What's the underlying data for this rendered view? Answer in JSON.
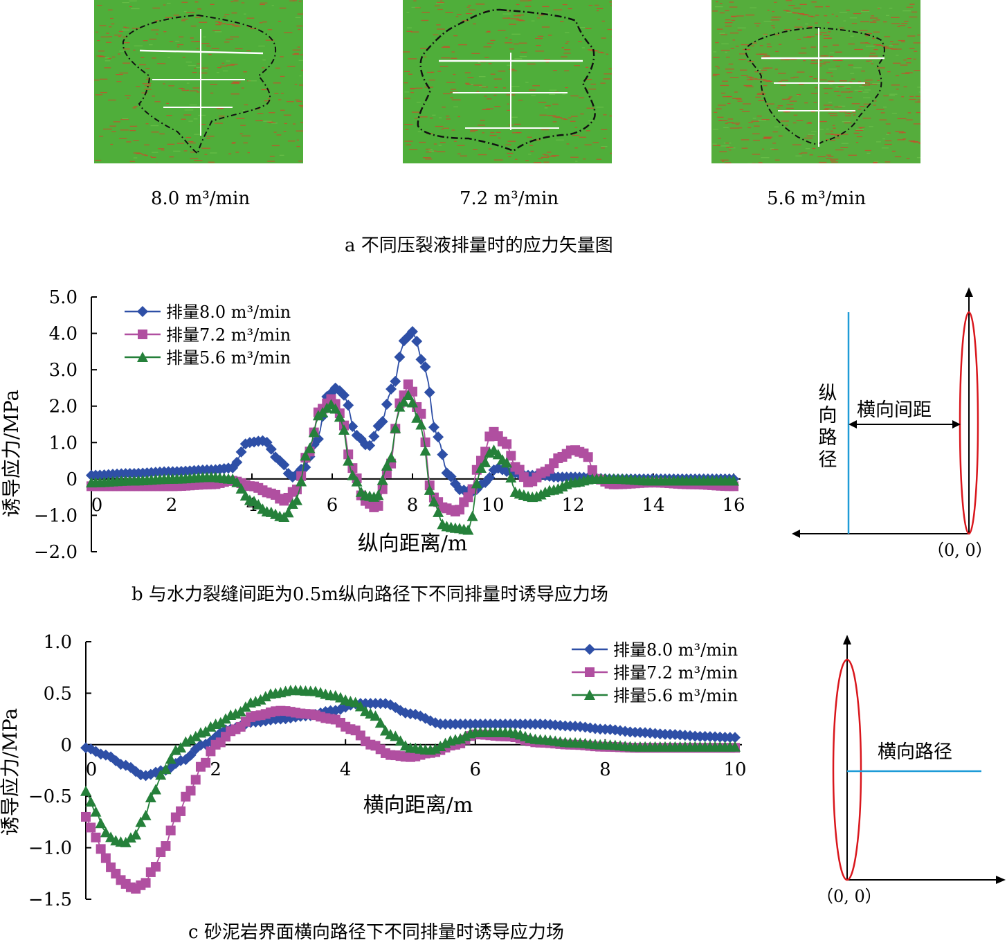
{
  "panel_a": {
    "images": [
      {
        "rate_label": "8.0 m³/min"
      },
      {
        "rate_label": "7.2 m³/min"
      },
      {
        "rate_label": "5.6 m³/min"
      }
    ],
    "caption": "a 不同压裂液排量时的应力矢量图"
  },
  "panel_b": {
    "caption": "b 与水力裂缝间距为0.5m纵向路径下不同排量时诱导应力场",
    "schematic": {
      "path_label": "纵向路径",
      "spacing_label": "横向间距",
      "origin_label": "（0, 0）"
    }
  },
  "panel_c": {
    "caption": "c 砂泥岩界面横向路径下不同排量时诱导应力场",
    "schematic": {
      "path_label": "横向路径",
      "origin_label": "（0, 0）"
    }
  },
  "colors": {
    "series_8_0": "#2e4fa6",
    "series_7_2": "#b04fa0",
    "series_5_6": "#25803a",
    "fracture_ellipse": "#d9161c",
    "path_line": "#1e9bd7",
    "image_green": "#4fae3a",
    "image_red": "#d2452a"
  },
  "chart_data": [
    {
      "type": "line",
      "xlabel": "纵向距离/m",
      "ylabel": "诱导应力/MPa",
      "xlim": [
        0,
        16
      ],
      "ylim": [
        -2.0,
        5.0
      ],
      "x_ticks": [
        "0",
        "2",
        "4",
        "6",
        "8",
        "10",
        "12",
        "14",
        "16"
      ],
      "y_ticks": [
        "5.0",
        "4.0",
        "3.0",
        "2.0",
        "1.0",
        "0",
        "−1.0",
        "−2.0"
      ],
      "legend_position": "top-left",
      "series": [
        {
          "name": "排量8.0 m³/min",
          "marker": "diamond",
          "x": [
            0,
            1,
            2,
            3,
            3.5,
            3.9,
            4.3,
            4.7,
            5.0,
            5.3,
            5.6,
            5.9,
            6.1,
            6.3,
            6.6,
            6.9,
            7.2,
            7.5,
            7.8,
            8.0,
            8.3,
            8.6,
            8.9,
            9.2,
            9.5,
            9.8,
            10.1,
            10.4,
            10.8,
            11.2,
            11.6,
            12.0,
            13.0,
            14.0,
            15.0,
            16.0
          ],
          "values": [
            0.1,
            0.15,
            0.2,
            0.25,
            0.3,
            1.0,
            1.05,
            0.5,
            0.05,
            0.3,
            1.0,
            2.3,
            2.5,
            2.3,
            1.2,
            0.9,
            1.5,
            2.5,
            3.8,
            4.05,
            3.1,
            1.2,
            0.1,
            -0.3,
            -0.35,
            -0.1,
            0.3,
            0.2,
            0.1,
            0.1,
            0.05,
            0.05,
            0.0,
            0.0,
            0.0,
            0.0
          ]
        },
        {
          "name": "排量7.2 m³/min",
          "marker": "square",
          "x": [
            0,
            1,
            2,
            3,
            3.5,
            4.0,
            4.5,
            4.8,
            5.1,
            5.4,
            5.7,
            6.0,
            6.2,
            6.5,
            6.8,
            7.1,
            7.4,
            7.7,
            7.9,
            8.2,
            8.5,
            8.8,
            9.1,
            9.4,
            9.7,
            10.0,
            10.3,
            10.6,
            10.9,
            11.3,
            11.7,
            12.0,
            12.3,
            12.6,
            13.0,
            14.0,
            15.0,
            16.0
          ],
          "values": [
            -0.2,
            -0.2,
            -0.2,
            -0.15,
            -0.05,
            -0.2,
            -0.4,
            -0.6,
            -0.3,
            0.7,
            1.9,
            2.2,
            1.8,
            0.3,
            -0.6,
            -0.8,
            0.2,
            2.1,
            2.6,
            1.8,
            -0.5,
            -0.8,
            -0.9,
            -0.5,
            0.5,
            1.3,
            1.0,
            0.3,
            -0.1,
            0.2,
            0.6,
            0.8,
            0.7,
            0.0,
            -0.15,
            -0.1,
            -0.15,
            -0.2
          ]
        },
        {
          "name": "排量5.6 m³/min",
          "marker": "triangle",
          "x": [
            0,
            1,
            2,
            3,
            3.5,
            4.0,
            4.4,
            4.8,
            5.1,
            5.4,
            5.7,
            6.0,
            6.2,
            6.5,
            6.8,
            7.1,
            7.4,
            7.7,
            7.9,
            8.2,
            8.5,
            8.8,
            9.1,
            9.4,
            9.7,
            10.0,
            10.3,
            10.6,
            11.0,
            11.5,
            12.0,
            12.5,
            13.0,
            14.0,
            15.0,
            16.0
          ],
          "values": [
            -0.1,
            -0.05,
            0.0,
            0.05,
            0.0,
            -0.6,
            -0.9,
            -1.05,
            -0.6,
            0.8,
            1.8,
            2.05,
            1.7,
            0.1,
            -0.45,
            -0.5,
            0.4,
            2.0,
            2.3,
            1.5,
            -0.6,
            -1.3,
            -1.35,
            -1.4,
            0.3,
            0.8,
            0.5,
            -0.4,
            -0.5,
            -0.3,
            -0.1,
            0.0,
            0.0,
            -0.05,
            -0.05,
            -0.05
          ]
        }
      ]
    },
    {
      "type": "line",
      "xlabel": "横向距离/m",
      "ylabel": "诱导应力/MPa",
      "xlim": [
        0,
        10
      ],
      "ylim": [
        -1.5,
        1.0
      ],
      "x_ticks": [
        "0",
        "2",
        "4",
        "6",
        "8",
        "10"
      ],
      "y_ticks": [
        "1.0",
        "0.5",
        "0",
        "−0.5",
        "−1.0",
        "−1.5"
      ],
      "legend_position": "top-right",
      "series": [
        {
          "name": "排量8.0 m³/min",
          "marker": "diamond",
          "x": [
            0,
            0.3,
            0.6,
            0.9,
            1.2,
            1.5,
            1.8,
            2.2,
            2.6,
            3.0,
            3.4,
            3.8,
            4.2,
            4.6,
            5.0,
            5.5,
            6.0,
            6.5,
            7.0,
            7.5,
            8.0,
            8.5,
            9.0,
            9.5,
            10.0
          ],
          "values": [
            -0.03,
            -0.1,
            -0.2,
            -0.3,
            -0.25,
            -0.15,
            0.0,
            0.15,
            0.22,
            0.25,
            0.28,
            0.33,
            0.4,
            0.4,
            0.3,
            0.2,
            0.2,
            0.2,
            0.2,
            0.18,
            0.15,
            0.12,
            0.1,
            0.08,
            0.07
          ]
        },
        {
          "name": "排量7.2 m³/min",
          "marker": "square",
          "x": [
            0,
            0.15,
            0.3,
            0.45,
            0.6,
            0.75,
            0.9,
            1.05,
            1.2,
            1.4,
            1.6,
            1.8,
            2.0,
            2.3,
            2.6,
            3.0,
            3.4,
            3.8,
            4.1,
            4.4,
            4.7,
            5.0,
            5.3,
            5.7,
            6.0,
            6.5,
            7.0,
            7.5,
            8.0,
            8.5,
            9.0,
            9.5,
            10.0
          ],
          "values": [
            -0.7,
            -0.9,
            -1.1,
            -1.25,
            -1.35,
            -1.4,
            -1.35,
            -1.2,
            -1.0,
            -0.7,
            -0.45,
            -0.2,
            0.0,
            0.15,
            0.28,
            0.33,
            0.3,
            0.25,
            0.15,
            0.0,
            -0.1,
            -0.12,
            -0.08,
            0.0,
            0.1,
            0.08,
            0.02,
            0.0,
            -0.02,
            -0.03,
            -0.03,
            -0.03,
            -0.03
          ]
        },
        {
          "name": "排量5.6 m³/min",
          "marker": "triangle",
          "x": [
            0,
            0.15,
            0.3,
            0.45,
            0.6,
            0.75,
            0.9,
            1.05,
            1.2,
            1.4,
            1.6,
            1.8,
            2.0,
            2.3,
            2.6,
            2.9,
            3.2,
            3.5,
            3.8,
            4.1,
            4.4,
            4.7,
            5.0,
            5.3,
            5.7,
            6.0,
            6.5,
            7.0,
            7.5,
            8.0,
            8.5,
            9.0,
            9.5,
            10.0
          ],
          "values": [
            -0.45,
            -0.65,
            -0.85,
            -0.93,
            -0.95,
            -0.88,
            -0.7,
            -0.45,
            -0.25,
            -0.05,
            0.05,
            0.12,
            0.2,
            0.3,
            0.42,
            0.5,
            0.53,
            0.52,
            0.48,
            0.42,
            0.3,
            0.1,
            -0.03,
            -0.05,
            0.05,
            0.12,
            0.12,
            0.05,
            0.02,
            0.0,
            -0.02,
            -0.02,
            -0.02,
            -0.02
          ]
        }
      ]
    }
  ]
}
